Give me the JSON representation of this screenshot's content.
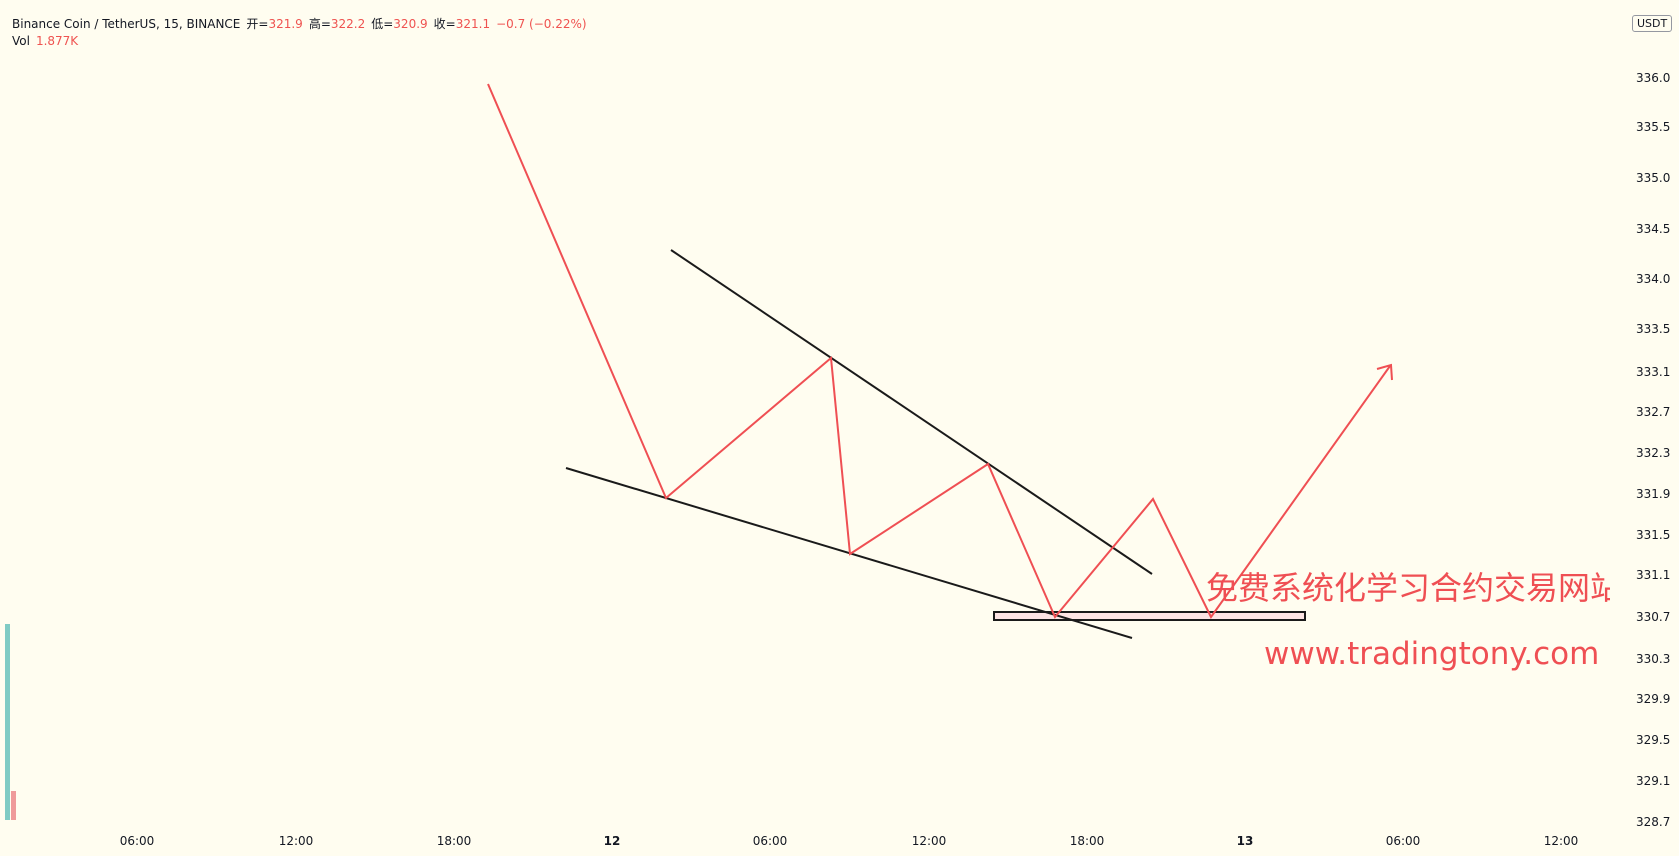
{
  "legend": {
    "symbol": "Binance Coin / TetherUS, 15, BINANCE",
    "open_label": "开=",
    "open_value": "321.9",
    "high_label": "高=",
    "high_value": "322.2",
    "low_label": "低=",
    "low_value": "320.9",
    "close_label": "收=",
    "close_value": "321.1",
    "change": "−0.7 (−0.22%)",
    "vol_label": "Vol",
    "vol_value": "1.877K"
  },
  "currency": "USDT",
  "watermark": {
    "text_cn": "免费系统化学习合约交易网站",
    "url": "www.tradingtony.com"
  },
  "colors": {
    "background": "#fffdf0",
    "red_line": "#ef4f53",
    "black_line": "#1a1a1a",
    "volume_green": "#80cbc4",
    "volume_red": "#ef9a9a",
    "support_box_fill": "#fde4e4"
  },
  "chart_data": {
    "type": "line",
    "y_ticks": [
      "336.0",
      "335.5",
      "335.0",
      "334.5",
      "334.0",
      "333.5",
      "333.1",
      "332.7",
      "332.3",
      "331.9",
      "331.5",
      "331.1",
      "330.7",
      "330.3",
      "329.9",
      "329.5",
      "329.1",
      "328.7"
    ],
    "x_ticks": [
      {
        "label": "06:00",
        "bold": false
      },
      {
        "label": "12:00",
        "bold": false
      },
      {
        "label": "18:00",
        "bold": false
      },
      {
        "label": "12",
        "bold": true
      },
      {
        "label": "06:00",
        "bold": false
      },
      {
        "label": "12:00",
        "bold": false
      },
      {
        "label": "18:00",
        "bold": false
      },
      {
        "label": "13",
        "bold": true
      },
      {
        "label": "06:00",
        "bold": false
      },
      {
        "label": "12:00",
        "bold": false
      }
    ],
    "drawings": {
      "red_zigzag_price_path": [
        336.0,
        331.85,
        333.2,
        331.3,
        332.2,
        330.65,
        331.85,
        330.65,
        333.1
      ],
      "upper_trendline_prices": [
        334.3,
        331.1
      ],
      "lower_trendline_prices": [
        332.2,
        330.35
      ],
      "support_zone_prices": [
        330.8,
        330.65
      ]
    }
  }
}
